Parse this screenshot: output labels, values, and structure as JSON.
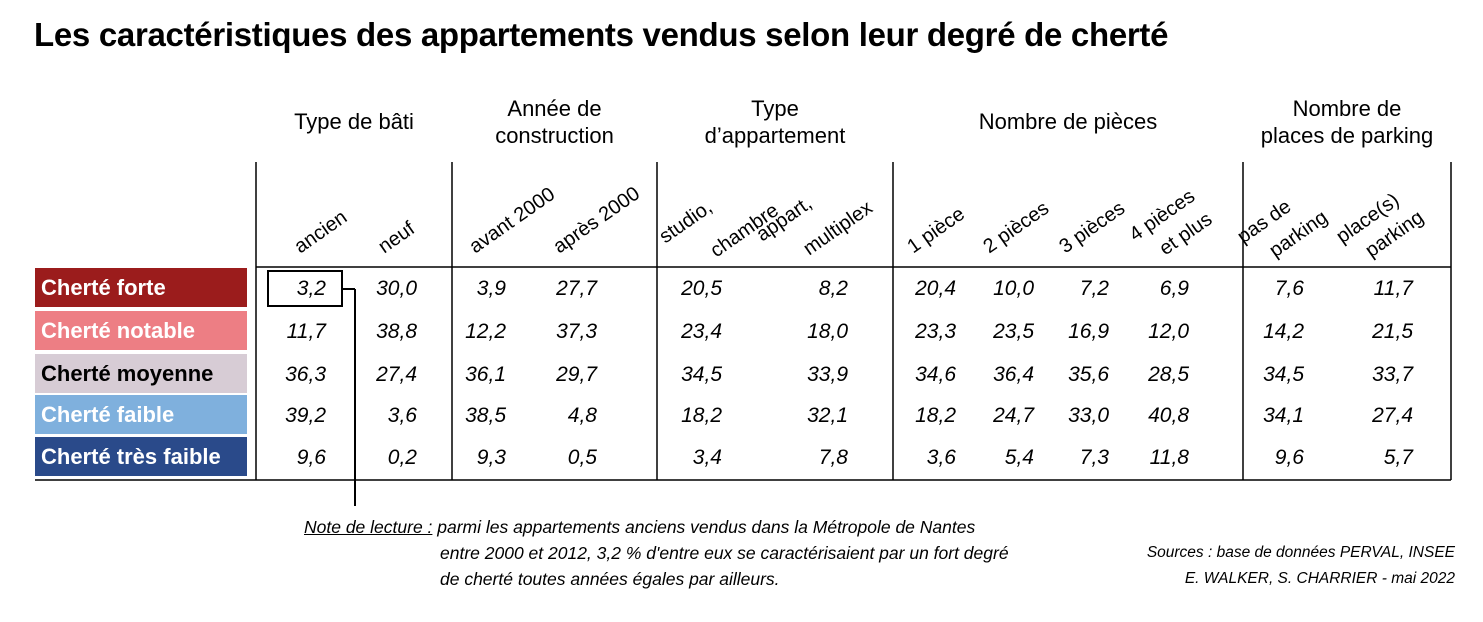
{
  "chart_data": {
    "type": "table",
    "title": "Les caractéristiques des appartements vendus selon leur degré de cherté",
    "groups": [
      {
        "label": [
          "Type de bâti"
        ],
        "columns": [
          [
            "ancien"
          ],
          [
            "neuf"
          ]
        ]
      },
      {
        "label": [
          "Année de",
          "construction"
        ],
        "columns": [
          [
            "avant 2000"
          ],
          [
            "après 2000"
          ]
        ]
      },
      {
        "label": [
          "Type",
          "d’appartement"
        ],
        "columns": [
          [
            "studio,",
            "chambre"
          ],
          [
            "appart,",
            "multiplex"
          ]
        ]
      },
      {
        "label": [
          "Nombre de pièces"
        ],
        "columns": [
          [
            "1 pièce"
          ],
          [
            "2 pièces"
          ],
          [
            "3 pièces"
          ],
          [
            "4 pièces",
            "et plus"
          ]
        ]
      },
      {
        "label": [
          "Nombre de",
          "places de parking"
        ],
        "columns": [
          [
            "pas de",
            "parking"
          ],
          [
            "place(s)",
            "parking"
          ]
        ]
      }
    ],
    "rows": [
      {
        "label": "Cherté forte",
        "color": "#9b1c1c",
        "values": [
          "3,2",
          "30,0",
          "3,9",
          "27,7",
          "20,5",
          "8,2",
          "20,4",
          "10,0",
          "7,2",
          "6,9",
          "7,6",
          "11,7"
        ]
      },
      {
        "label": "Cherté notable",
        "color": "#ed7e84",
        "values": [
          "11,7",
          "38,8",
          "12,2",
          "37,3",
          "23,4",
          "18,0",
          "23,3",
          "23,5",
          "16,9",
          "12,0",
          "14,2",
          "21,5"
        ]
      },
      {
        "label": "Cherté moyenne",
        "color": "#d7ccd5",
        "text_color": "#000000",
        "values": [
          "36,3",
          "27,4",
          "36,1",
          "29,7",
          "34,5",
          "33,9",
          "34,6",
          "36,4",
          "35,6",
          "28,5",
          "34,5",
          "33,7"
        ]
      },
      {
        "label": "Cherté faible",
        "color": "#7fb0dd",
        "values": [
          "39,2",
          "3,6",
          "38,5",
          "4,8",
          "18,2",
          "32,1",
          "18,2",
          "24,7",
          "33,0",
          "40,8",
          "34,1",
          "27,4"
        ]
      },
      {
        "label": "Cherté très faible",
        "color": "#2a4a8a",
        "values": [
          "9,6",
          "0,2",
          "9,3",
          "0,5",
          "3,4",
          "7,8",
          "3,6",
          "5,4",
          "7,3",
          "11,8",
          "9,6",
          "5,7"
        ]
      }
    ],
    "highlight": {
      "row": 0,
      "column": 0
    }
  },
  "note": {
    "label": "Note de lecture :",
    "line1": " parmi les appartements anciens vendus dans la Métropole de Nantes",
    "line2": "entre 2000 et 2012, 3,2 % d'entre eux se caractérisaient par un fort degré",
    "line3": "de cherté toutes années égales par ailleurs."
  },
  "sources": {
    "line1": "Sources : base de données PERVAL, INSEE",
    "line2": "E. WALKER, S. CHARRIER - mai 2022"
  }
}
